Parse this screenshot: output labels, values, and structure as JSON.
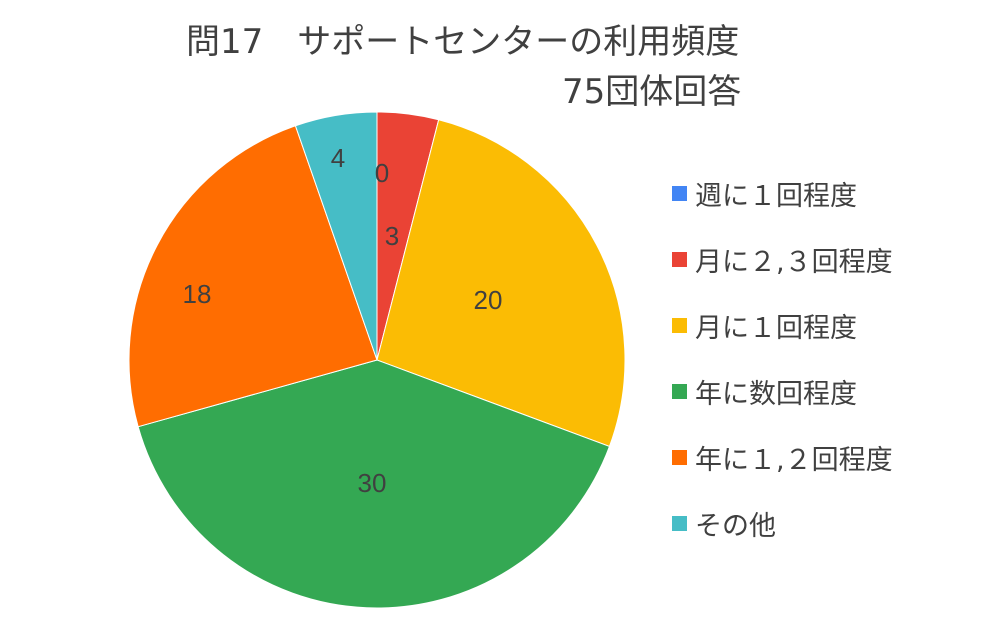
{
  "chart_data": {
    "type": "pie",
    "title": "問17　サポートセンターの利用頻度",
    "subtitle": "75団体回答",
    "categories": [
      "週に１回程度",
      "月に２,３回程度",
      "月に１回程度",
      "年に数回程度",
      "年に１,２回程度",
      "その他"
    ],
    "values": [
      0,
      3,
      20,
      30,
      18,
      4
    ],
    "data_labels": [
      "0",
      "3",
      "20",
      "30",
      "18",
      "4"
    ],
    "colors": [
      "#4285F4",
      "#EA4335",
      "#FBBC04",
      "#34A853",
      "#FF6D01",
      "#46BDC6"
    ],
    "legend_position": "right"
  }
}
